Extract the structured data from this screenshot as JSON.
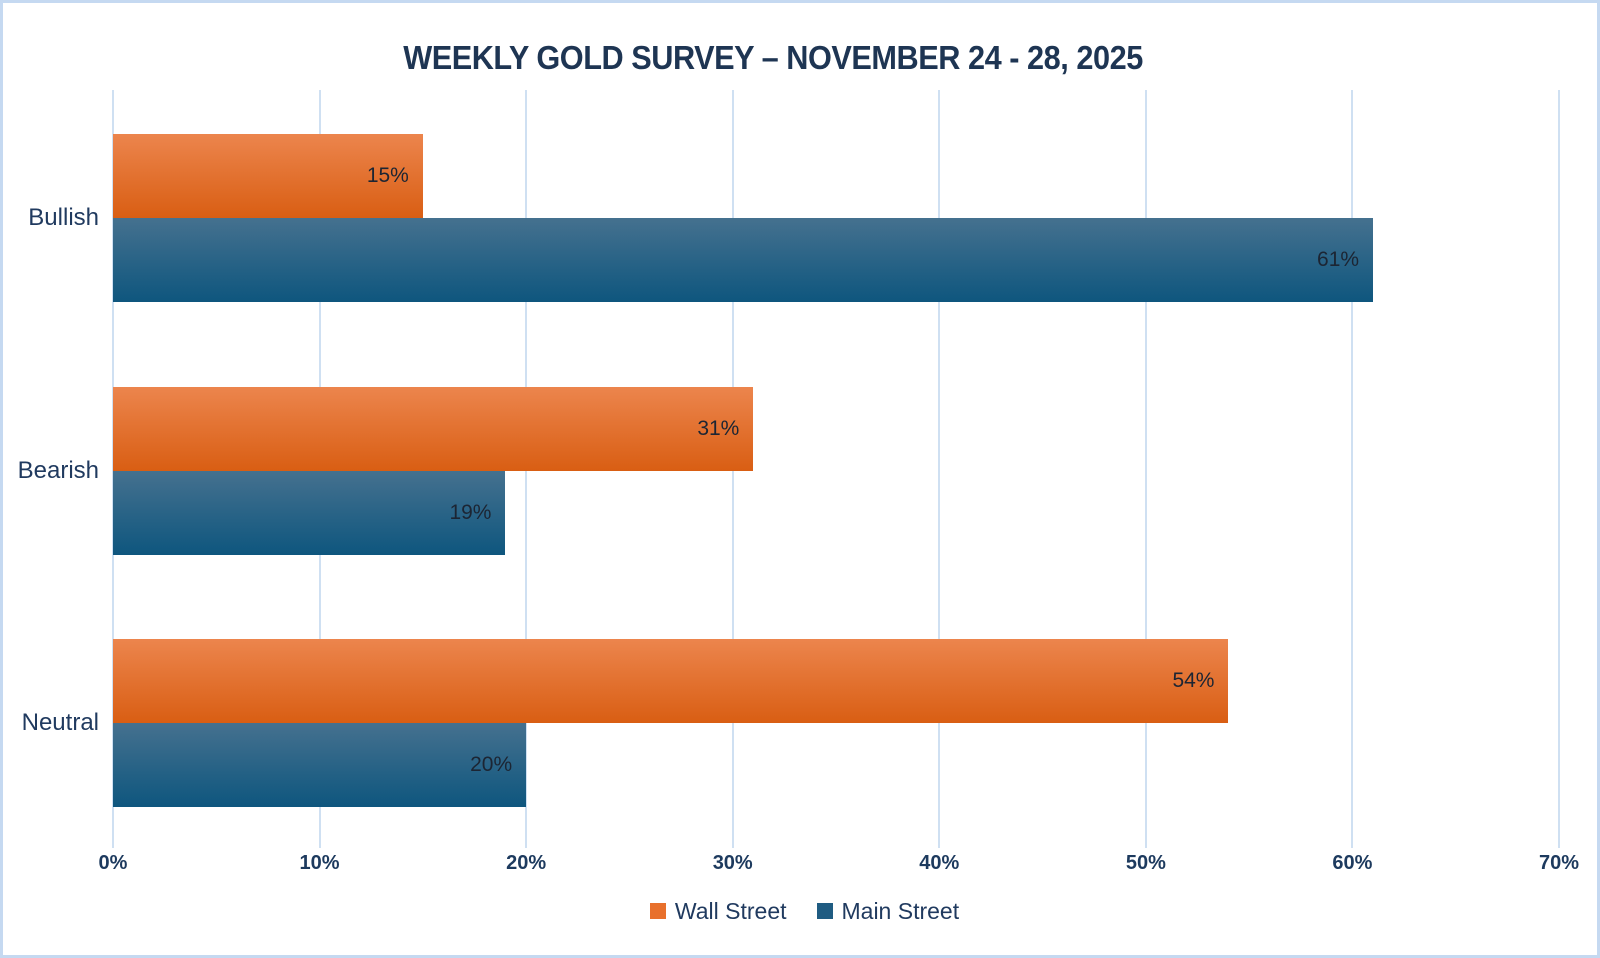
{
  "chart_data": {
    "type": "bar",
    "orientation": "horizontal",
    "title": "WEEKLY GOLD SURVEY – NOVEMBER 24 - 28, 2025",
    "categories": [
      "Bullish",
      "Bearish",
      "Neutral"
    ],
    "series": [
      {
        "name": "Wall Street",
        "values": [
          15,
          31,
          54
        ],
        "labels": [
          "15%",
          "31%",
          "54%"
        ],
        "gradient_top": "#EC854D",
        "gradient_bottom": "#D95E13",
        "swatch": "#E8702C"
      },
      {
        "name": "Main Street",
        "values": [
          61,
          19,
          20
        ],
        "labels": [
          "61%",
          "19%",
          "20%"
        ],
        "gradient_top": "#45718F",
        "gradient_bottom": "#0E567E",
        "swatch": "#1F5C82"
      }
    ],
    "x_ticks": [
      "0%",
      "10%",
      "20%",
      "30%",
      "40%",
      "50%",
      "60%",
      "70%"
    ],
    "xlim": [
      0,
      70
    ],
    "grid": true,
    "legend_position": "bottom",
    "colors": {
      "title_text": "#1E3553",
      "axis_text": "#1D3A5E",
      "category_text": "#203A5F",
      "value_text": "#1C2533",
      "gridline": "#CFE0F2",
      "border": "#C5D9F1",
      "background": "#FFFFFF"
    }
  }
}
